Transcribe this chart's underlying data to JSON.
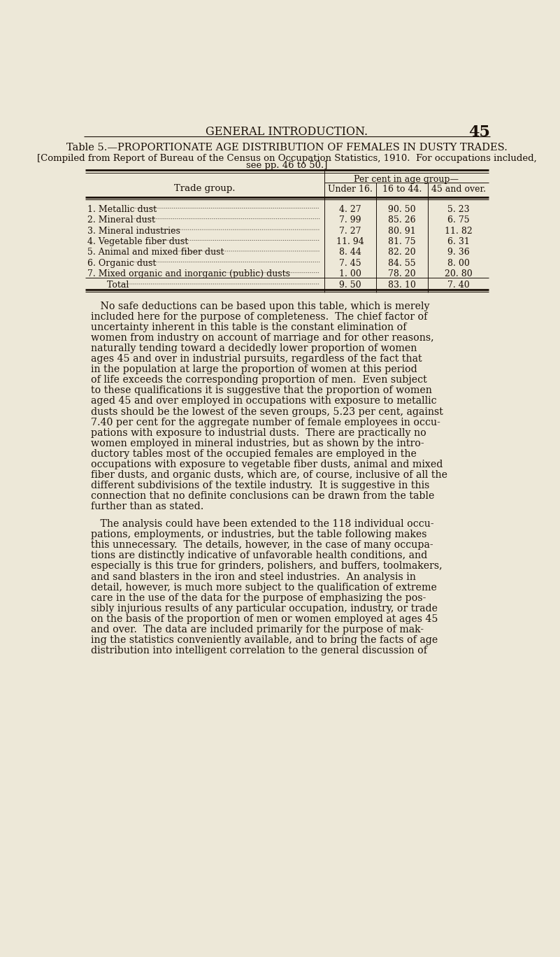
{
  "bg_color": "#ede8d8",
  "text_color": "#1a1008",
  "page_number": "45",
  "header": "GENERAL INTRODUCTION.",
  "table_title": "Table 5.—PROPORTIONATE AGE DISTRIBUTION OF FEMALES IN DUSTY TRADES.",
  "table_subtitle_1": "[Compiled from Report of Bureau of the Census on Occupation Statistics, 1910.  For occupations included,",
  "table_subtitle_2": "see pp. 46 to 50.]",
  "col_header_main": "Per cent in age group—",
  "col_header_left": "Trade group.",
  "col_headers": [
    "Under 16.",
    "16 to 44.",
    "45 and over."
  ],
  "rows": [
    {
      "num": "1.",
      "name": "Metallic dust",
      "under16": "4. 27",
      "age16to44": "90. 50",
      "age45over": "5. 23"
    },
    {
      "num": "2.",
      "name": "Mineral dust",
      "under16": "7. 99",
      "age16to44": "85. 26",
      "age45over": "6. 75"
    },
    {
      "num": "3.",
      "name": "Mineral industries",
      "under16": "7. 27",
      "age16to44": "80. 91",
      "age45over": "11. 82"
    },
    {
      "num": "4.",
      "name": "Vegetable fiber dust",
      "under16": "11. 94",
      "age16to44": "81. 75",
      "age45over": "6. 31"
    },
    {
      "num": "5.",
      "name": "Animal and mixed fiber dust",
      "under16": "8. 44",
      "age16to44": "82. 20",
      "age45over": "9. 36"
    },
    {
      "num": "6.",
      "name": "Organic dust",
      "under16": "7. 45",
      "age16to44": "84. 55",
      "age45over": "8. 00"
    },
    {
      "num": "7.",
      "name": "Mixed organic and inorganic (public) dusts",
      "under16": "1. 00",
      "age16to44": "78. 20",
      "age45over": "20. 80"
    }
  ],
  "total_row": {
    "name": "Total",
    "under16": "9. 50",
    "age16to44": "83. 10",
    "age45over": "7. 40"
  },
  "para1_lines": [
    "   No safe deductions can be based upon this table, which is merely",
    "included here for the purpose of completeness.  The chief factor of",
    "uncertainty inherent in this table is the constant elimination of",
    "women from industry on account of marriage and for other reasons,",
    "naturally tending toward a decidedly lower proportion of women",
    "ages 45 and over in industrial pursuits, regardless of the fact that",
    "in the population at large the proportion of women at this period",
    "of life exceeds the corresponding proportion of men.  Even subject",
    "to these qualifications it is suggestive that the proportion of women",
    "aged 45 and over employed in occupations with exposure to metallic",
    "dusts should be the lowest of the seven groups, 5.23 per cent, against",
    "7.40 per cent for the aggregate number of female employees in occu-",
    "pations with exposure to industrial dusts.  There are practically no",
    "women employed in mineral industries, but as shown by the intro-",
    "ductory tables most of the occupied females are employed in the",
    "occupations with exposure to vegetable fiber dusts, animal and mixed",
    "fiber dusts, and organic dusts, which are, of course, inclusive of all the",
    "different subdivisions of the textile industry.  It is suggestive in this",
    "connection that no definite conclusions can be drawn from the table",
    "further than as stated."
  ],
  "para2_lines": [
    "   The analysis could have been extended to the 118 individual occu-",
    "pations, employments, or industries, but the table following makes",
    "this unnecessary.  The details, however, in the case of many occupa-",
    "tions are distinctly indicative of unfavorable health conditions, and",
    "especially is this true for grinders, polishers, and buffers, toolmakers,",
    "and sand blasters in the iron and steel industries.  An analysis in",
    "detail, however, is much more subject to the qualification of extreme",
    "care in the use of the data for the purpose of emphasizing the pos-",
    "sibly injurious results of any particular occupation, industry, or trade",
    "on the basis of the proportion of men or women employed at ages 45",
    "and over.  The data are included primarily for the purpose of mak-",
    "ing the statistics conveniently available, and to bring the facts of age",
    "distribution into intelligent correlation to the general discussion of"
  ]
}
